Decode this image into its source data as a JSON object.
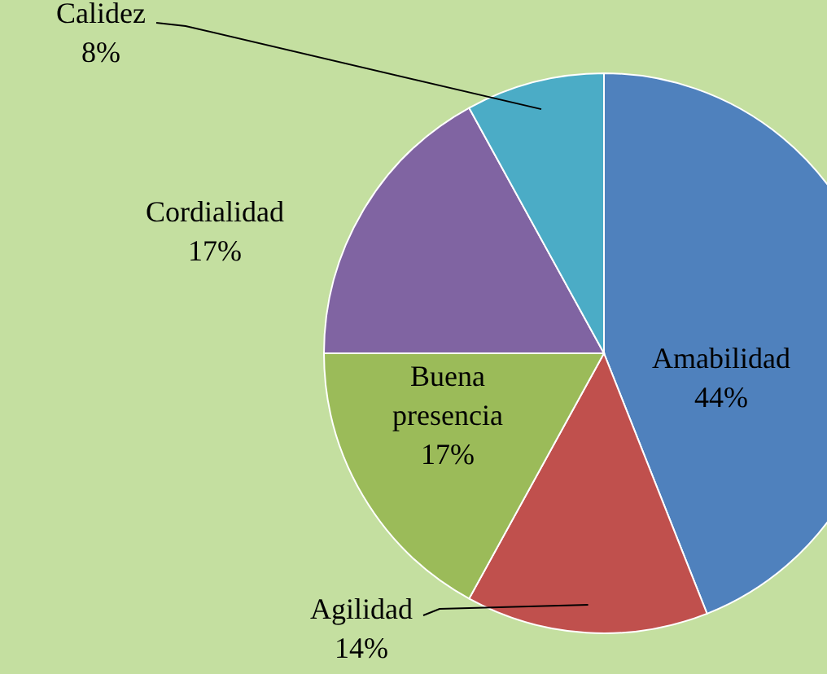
{
  "chart_data": {
    "type": "pie",
    "categories": [
      "Amabilidad",
      "Agilidad",
      "Buena presencia",
      "Cordialidad",
      "Calidez"
    ],
    "values": [
      44,
      14,
      17,
      17,
      8
    ],
    "value_labels": [
      "44%",
      "14%",
      "17%",
      "17%",
      "8%"
    ],
    "colors": [
      "#4f81bd",
      "#c0504d",
      "#9bbb59",
      "#8064a2",
      "#4bacc6"
    ]
  }
}
